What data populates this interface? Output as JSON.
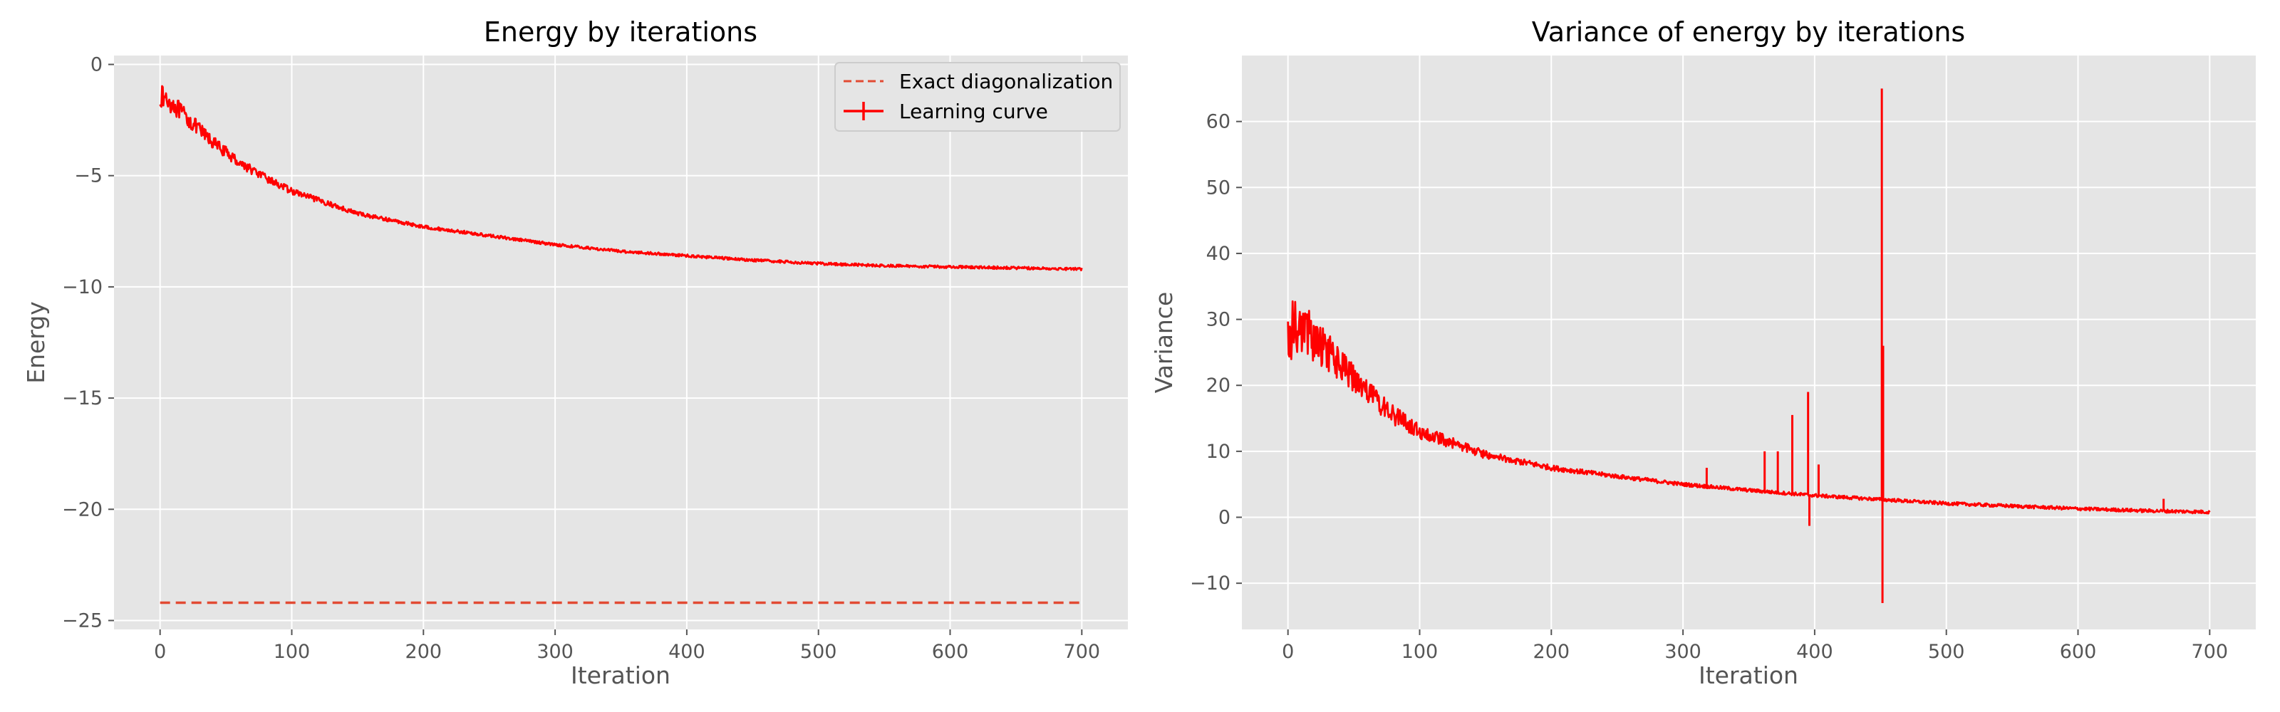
{
  "colors": {
    "plot_background": "#e5e5e5",
    "grid": "#ffffff",
    "line": "#ff0000",
    "exact_line": "#e24a33",
    "text": "#555555"
  },
  "chart_data": [
    {
      "type": "line",
      "title": "Energy by iterations",
      "xlabel": "Iteration",
      "ylabel": "Energy",
      "xlim": [
        -35,
        735
      ],
      "ylim": [
        -25.4,
        0.4
      ],
      "xticks": [
        0,
        100,
        200,
        300,
        400,
        500,
        600,
        700
      ],
      "yticks": [
        0,
        -5,
        -10,
        -15,
        -20,
        -25
      ],
      "ytick_labels": [
        "0",
        "−5",
        "−10",
        "−15",
        "−20",
        "−25"
      ],
      "grid": true,
      "legend": "top-right",
      "series": [
        {
          "name": "Exact diagonalization",
          "style": "dashed",
          "x": [
            0,
            700
          ],
          "y": [
            -24.2,
            -24.2
          ]
        },
        {
          "name": "Learning curve",
          "style": "solid",
          "noise": "decreasing",
          "x": [
            0,
            10,
            20,
            40,
            60,
            80,
            100,
            150,
            200,
            250,
            300,
            350,
            400,
            450,
            500,
            550,
            600,
            650,
            700
          ],
          "y": [
            -1.4,
            -1.8,
            -2.4,
            -3.5,
            -4.4,
            -5.1,
            -5.7,
            -6.7,
            -7.3,
            -7.7,
            -8.1,
            -8.4,
            -8.6,
            -8.8,
            -8.95,
            -9.05,
            -9.1,
            -9.15,
            -9.2
          ]
        }
      ]
    },
    {
      "type": "line",
      "title": "Variance of energy by iterations",
      "xlabel": "Iteration",
      "ylabel": "Variance",
      "xlim": [
        -35,
        735
      ],
      "ylim": [
        -17,
        70
      ],
      "xticks": [
        0,
        100,
        200,
        300,
        400,
        500,
        600,
        700
      ],
      "yticks": [
        -10,
        0,
        10,
        20,
        30,
        40,
        50,
        60
      ],
      "ytick_labels": [
        "−10",
        "0",
        "10",
        "20",
        "30",
        "40",
        "50",
        "60"
      ],
      "grid": true,
      "series": [
        {
          "style": "solid",
          "noise": "decreasing",
          "x": [
            0,
            10,
            20,
            40,
            60,
            80,
            100,
            150,
            200,
            250,
            300,
            350,
            400,
            450,
            500,
            550,
            600,
            650,
            700
          ],
          "y": [
            28,
            29,
            27,
            23,
            19,
            15.5,
            13,
            9.5,
            7.5,
            6.2,
            5,
            4.1,
            3.3,
            2.7,
            2.1,
            1.7,
            1.3,
            1.0,
            0.8
          ],
          "spikes": [
            {
              "x": 318,
              "y": 7.5
            },
            {
              "x": 362,
              "y": 10
            },
            {
              "x": 372,
              "y": 10
            },
            {
              "x": 383,
              "y": 15.5
            },
            {
              "x": 395,
              "y": 19
            },
            {
              "x": 396,
              "y": -1.3
            },
            {
              "x": 403,
              "y": 8
            },
            {
              "x": 451,
              "y": 65
            },
            {
              "x": 451.5,
              "y": -13
            },
            {
              "x": 452,
              "y": 26
            },
            {
              "x": 665,
              "y": 2.8
            }
          ]
        }
      ]
    }
  ]
}
